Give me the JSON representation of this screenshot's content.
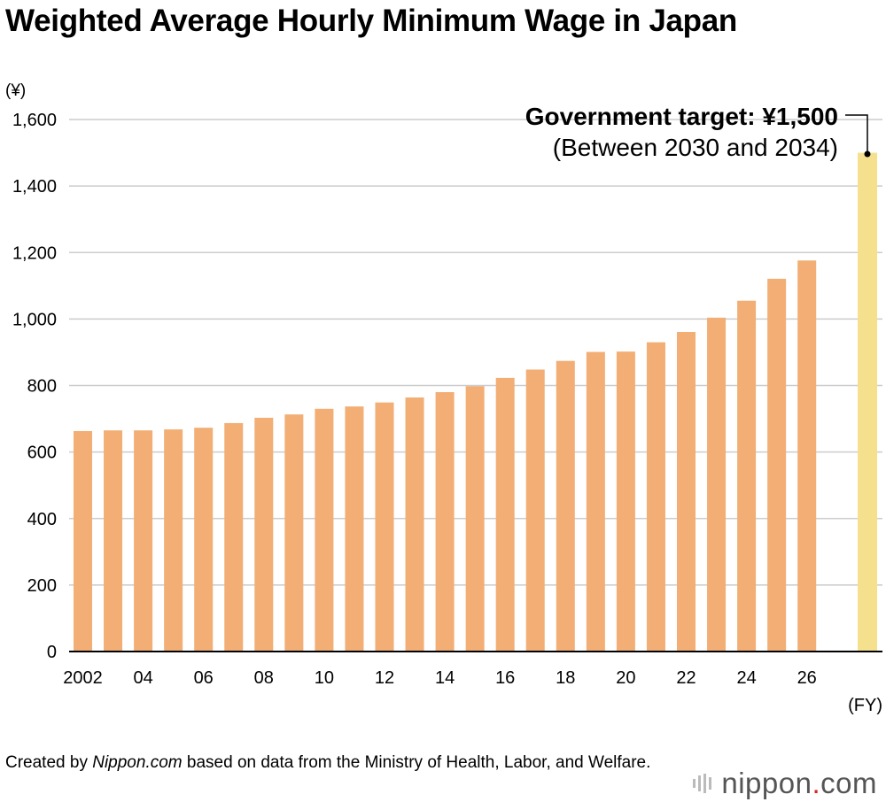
{
  "chart_data": {
    "type": "bar",
    "title": "Weighted Average Hourly Minimum Wage in Japan",
    "ylabel": "(¥)",
    "xlabel": "(FY)",
    "ylim": [
      0,
      1600
    ],
    "yticks": [
      0,
      200,
      400,
      600,
      800,
      1000,
      1200,
      1400,
      1600
    ],
    "ytick_labels": [
      "0",
      "200",
      "400",
      "600",
      "800",
      "1,000",
      "1,200",
      "1,400",
      "1,600"
    ],
    "grid": true,
    "categories": [
      "2002",
      "2003",
      "2004",
      "2005",
      "2006",
      "2007",
      "2008",
      "2009",
      "2010",
      "2011",
      "2012",
      "2013",
      "2014",
      "2015",
      "2016",
      "2017",
      "2018",
      "2019",
      "2020",
      "2021",
      "2022",
      "2023",
      "2024",
      "2025",
      "2026"
    ],
    "tick_labels": [
      "2002",
      "04",
      "06",
      "08",
      "10",
      "12",
      "14",
      "16",
      "18",
      "20",
      "22",
      "24",
      "26"
    ],
    "tick_label_indices": [
      0,
      2,
      4,
      6,
      8,
      10,
      12,
      14,
      16,
      18,
      20,
      22,
      24
    ],
    "values": [
      663,
      665,
      665,
      668,
      673,
      687,
      703,
      713,
      730,
      737,
      749,
      764,
      780,
      798,
      823,
      848,
      874,
      901,
      902,
      930,
      961,
      1004,
      1055,
      1121,
      1176
    ],
    "bar_color": "#f2ae74",
    "target": {
      "value": 1500,
      "label": "Government target: ¥1,500",
      "sublabel": "(Between 2030 and 2034)",
      "color": "#f5e08e"
    }
  },
  "footer": {
    "credit_prefix": "Created by ",
    "credit_source": "Nippon.com",
    "credit_suffix": " based on data from the Ministry of Health, Labor, and Welfare.",
    "logo_text_a": "nippon",
    "logo_dot": ".",
    "logo_text_b": "com"
  }
}
